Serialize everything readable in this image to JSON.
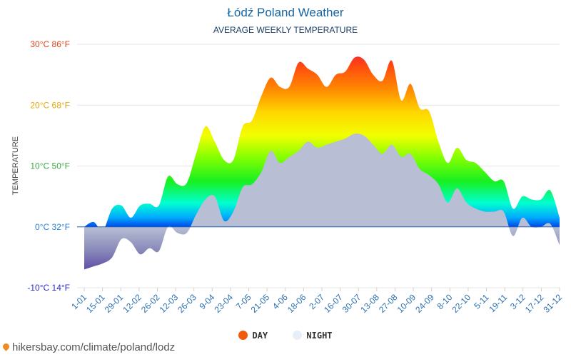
{
  "chart_data": {
    "type": "area",
    "title": "Łódź Poland Weather",
    "subtitle": "AVERAGE WEEKLY TEMPERATURE",
    "ylabel": "TEMPERATURE",
    "ylim": [
      -10,
      30
    ],
    "yticks": [
      {
        "value": 30,
        "label": "30°C 86°F",
        "color": "#e0441b"
      },
      {
        "value": 20,
        "label": "20°C 68°F",
        "color": "#e8a90a"
      },
      {
        "value": 10,
        "label": "10°C 50°F",
        "color": "#3aa845"
      },
      {
        "value": 0,
        "label": "0°C 32°F",
        "color": "#2a7fd6"
      },
      {
        "value": -10,
        "label": "-10°C 14°F",
        "color": "#2a2ad1"
      }
    ],
    "xlabels": [
      "1-01",
      "15-01",
      "29-01",
      "12-02",
      "26-02",
      "12-03",
      "26-03",
      "9-04",
      "23-04",
      "7-05",
      "21-05",
      "4-06",
      "18-06",
      "2-07",
      "16-07",
      "30-07",
      "13-08",
      "27-08",
      "10-09",
      "24-09",
      "8-10",
      "22-10",
      "5-11",
      "19-11",
      "3-12",
      "17-12",
      "31-12"
    ],
    "series": [
      {
        "name": "DAY",
        "color": "#f05a0a",
        "values": [
          0,
          0.8,
          -0.6,
          3,
          3.5,
          1.5,
          3.5,
          3.8,
          3.5,
          8.3,
          7,
          7.2,
          12,
          16.5,
          14,
          11,
          11,
          16.5,
          17.5,
          21.5,
          24.5,
          23,
          23,
          27,
          26,
          25,
          23,
          25,
          25.5,
          27.8,
          27.5,
          25,
          24,
          27.3,
          20.8,
          23.5,
          19.5,
          19,
          14,
          10.5,
          13,
          11,
          10.5,
          9,
          7.5,
          7.5,
          3,
          5,
          4.5,
          4.5,
          6,
          1.5
        ]
      },
      {
        "name": "NIGHT",
        "color": "#e6eef8",
        "values": [
          -7,
          -6.5,
          -6,
          -5,
          -2,
          -2.5,
          -4.5,
          -3.5,
          -4,
          0,
          -1,
          -1,
          2,
          4.5,
          5,
          1,
          2.5,
          6.5,
          7,
          9,
          12.5,
          10.5,
          11.5,
          12.5,
          14,
          13,
          13.5,
          14,
          14.5,
          15.3,
          15,
          13.5,
          12,
          13.5,
          11.5,
          12,
          9.5,
          8.5,
          7,
          4,
          6.3,
          4,
          3,
          2.5,
          2.5,
          2.5,
          -1.5,
          1.5,
          0,
          0,
          0.5,
          -3
        ]
      }
    ]
  },
  "legend": {
    "day": "DAY",
    "night": "NIGHT"
  },
  "source": "hikersbay.com/climate/poland/lodz"
}
